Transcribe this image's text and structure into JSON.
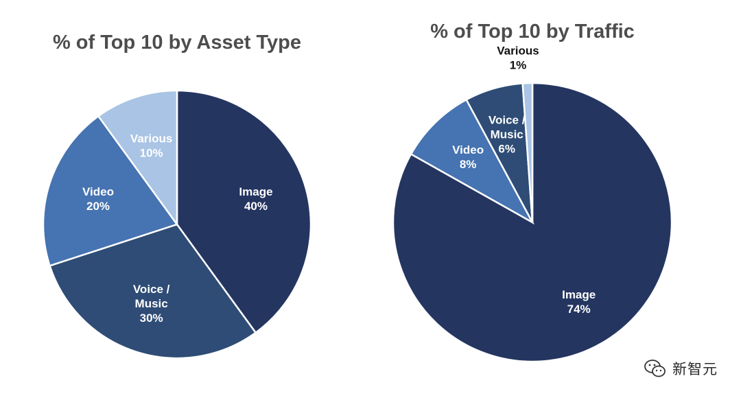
{
  "chart_data": [
    {
      "type": "pie",
      "title": "% of Top 10 by Asset Type",
      "slices": [
        {
          "label": "Image",
          "value": 40,
          "value_label": "40%",
          "color": "#243560",
          "text_color": "#ffffff"
        },
        {
          "label": "Voice / Music",
          "value": 30,
          "value_label": "30%",
          "color": "#2e4c75",
          "text_color": "#ffffff"
        },
        {
          "label": "Video",
          "value": 20,
          "value_label": "20%",
          "color": "#4673b1",
          "text_color": "#ffffff"
        },
        {
          "label": "Various",
          "value": 10,
          "value_label": "10%",
          "color": "#a9c4e4",
          "text_color": "#ffffff"
        }
      ]
    },
    {
      "type": "pie",
      "title": "% of Top 10 by Traffic",
      "slices": [
        {
          "label": "Image",
          "value": 74,
          "value_label": "74%",
          "color": "#243560",
          "text_color": "#ffffff"
        },
        {
          "label": "Video",
          "value": 8,
          "value_label": "8%",
          "color": "#4673b1",
          "text_color": "#ffffff"
        },
        {
          "label": "Voice / Music",
          "value": 6,
          "value_label": "6%",
          "color": "#2e4c75",
          "text_color": "#ffffff"
        },
        {
          "label": "Various",
          "value": 1,
          "value_label": "1%",
          "color": "#a9c4e4",
          "text_color": "#111111"
        }
      ]
    }
  ],
  "watermark": {
    "text": "新智元",
    "icon": "wechat-icon"
  }
}
